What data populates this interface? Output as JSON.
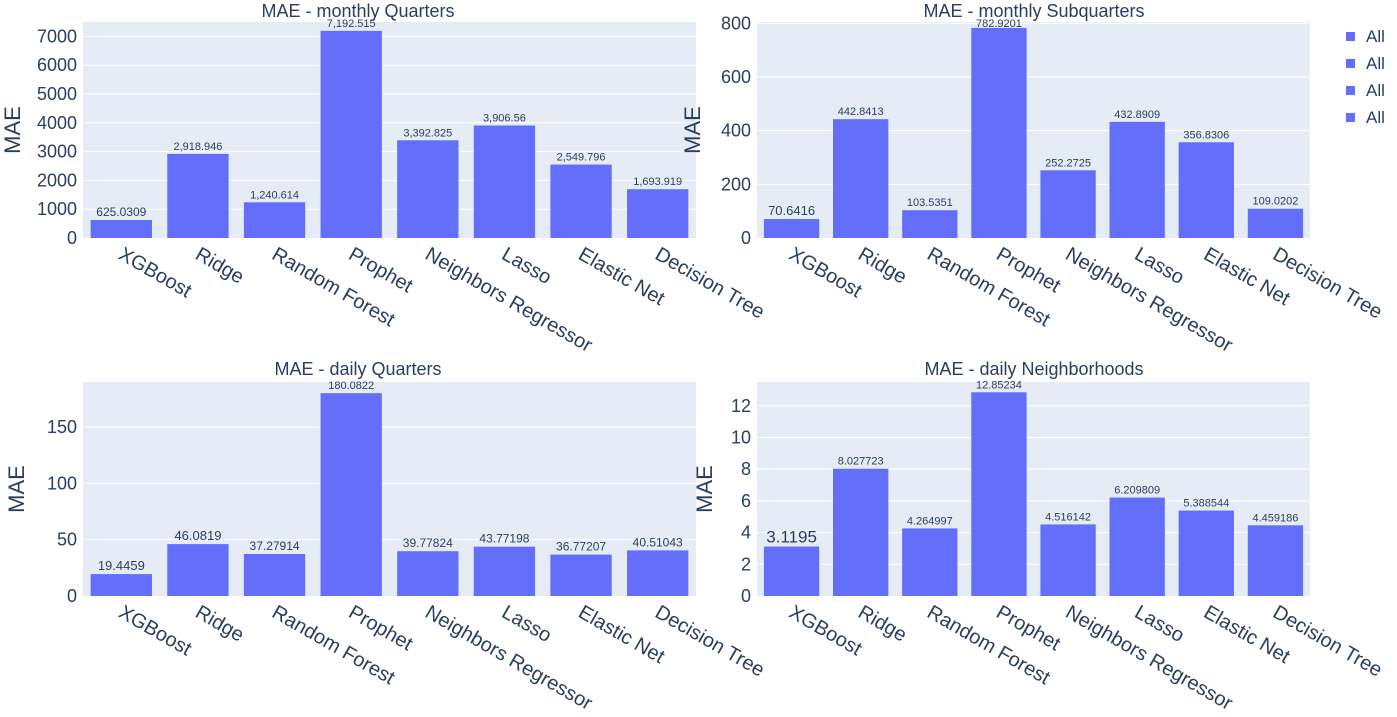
{
  "colors": {
    "bar": "#636efa",
    "plot_bg": "#e5ecf6",
    "grid": "#ffffff",
    "text": "#2a3f5f"
  },
  "legend": {
    "placement": "top-right",
    "entries": [
      "All",
      "All",
      "All",
      "All"
    ]
  },
  "chart_data": [
    {
      "type": "bar",
      "title": "MAE - monthly Quarters",
      "xlabel": "",
      "ylabel": "MAE",
      "ylim": [
        0,
        7500
      ],
      "yticks": [
        0,
        1000,
        2000,
        3000,
        4000,
        5000,
        6000,
        7000
      ],
      "categories": [
        "XGBoost",
        "Ridge",
        "Random Forest",
        "Prophet",
        "Neighbors Regressor",
        "Lasso",
        "Elastic Net",
        "Decision Tree"
      ],
      "values": [
        625.0309,
        2918.946,
        1240.614,
        7192.515,
        3392.825,
        3906.56,
        2549.796,
        1693.919
      ],
      "labels": [
        "625.0309",
        "2,918.946",
        "1,240.614",
        "7,192.515",
        "3,392.825",
        "3,906.56",
        "2,549.796",
        "1,693.919"
      ]
    },
    {
      "type": "bar",
      "title": "MAE - monthly Subquarters",
      "xlabel": "",
      "ylabel": "MAE",
      "ylim": [
        0,
        805
      ],
      "yticks": [
        0,
        200,
        400,
        600,
        800
      ],
      "categories": [
        "XGBoost",
        "Ridge",
        "Random Forest",
        "Prophet",
        "Neighbors Regressor",
        "Lasso",
        "Elastic Net",
        "Decision Tree"
      ],
      "values": [
        70.6416,
        442.8413,
        103.5351,
        782.9201,
        252.2725,
        432.8909,
        356.8306,
        109.0202
      ],
      "labels": [
        "70.6416",
        "442.8413",
        "103.5351",
        "782.9201",
        "252.2725",
        "432.8909",
        "356.8306",
        "109.0202"
      ]
    },
    {
      "type": "bar",
      "title": "MAE - daily Quarters",
      "xlabel": "",
      "ylabel": "MAE",
      "ylim": [
        0,
        190
      ],
      "yticks": [
        0,
        50,
        100,
        150
      ],
      "categories": [
        "XGBoost",
        "Ridge",
        "Random Forest",
        "Prophet",
        "Neighbors Regressor",
        "Lasso",
        "Elastic Net",
        "Decision Tree"
      ],
      "values": [
        19.4459,
        46.0819,
        37.27914,
        180.0822,
        39.77824,
        43.77198,
        36.77207,
        40.51043
      ],
      "labels": [
        "19.4459",
        "46.0819",
        "37.27914",
        "180.0822",
        "39.77824",
        "43.77198",
        "36.77207",
        "40.51043"
      ]
    },
    {
      "type": "bar",
      "title": "MAE - daily Neighborhoods",
      "xlabel": "",
      "ylabel": "MAE",
      "ylim": [
        0,
        13.5
      ],
      "yticks": [
        0,
        2,
        4,
        6,
        8,
        10,
        12
      ],
      "categories": [
        "XGBoost",
        "Ridge",
        "Random Forest",
        "Prophet",
        "Neighbors Regressor",
        "Lasso",
        "Elastic Net",
        "Decision Tree"
      ],
      "values": [
        3.1195,
        8.027723,
        4.264997,
        12.85234,
        4.516142,
        6.209809,
        5.388544,
        4.459186
      ],
      "labels": [
        "3.1195",
        "8.027723",
        "4.264997",
        "12.85234",
        "4.516142",
        "6.209809",
        "5.388544",
        "4.459186"
      ]
    }
  ]
}
